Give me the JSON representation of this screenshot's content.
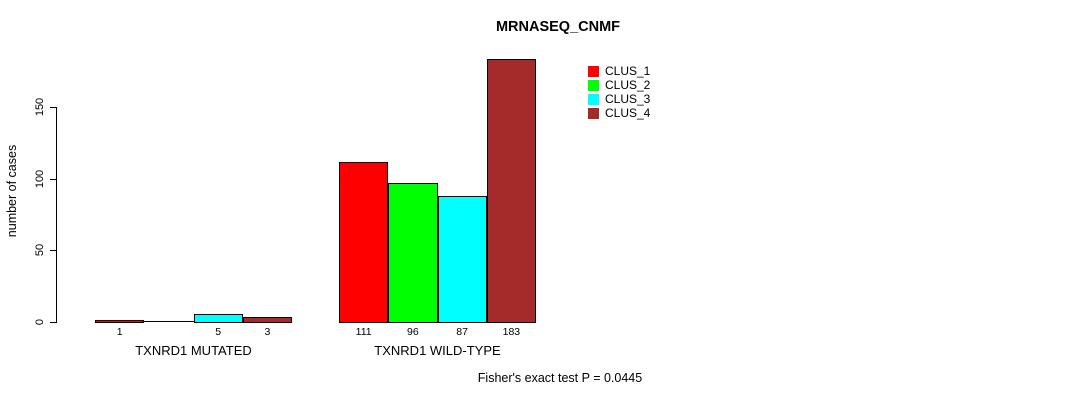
{
  "chart_data": {
    "type": "bar",
    "title": "MRNASEQ_CNMF",
    "ylabel": "number of cases",
    "xlabel": "",
    "categories": [
      "TXNRD1 MUTATED",
      "TXNRD1 WILD-TYPE"
    ],
    "series": [
      {
        "name": "CLUS_1",
        "color": "#FF0000",
        "values": [
          1,
          111
        ]
      },
      {
        "name": "CLUS_2",
        "color": "#00FF00",
        "values": [
          0,
          96
        ]
      },
      {
        "name": "CLUS_3",
        "color": "#00FFFF",
        "values": [
          5,
          87
        ]
      },
      {
        "name": "CLUS_4",
        "color": "#A52A2A",
        "values": [
          3,
          183
        ]
      }
    ],
    "bar_value_labels": [
      [
        "1",
        "",
        "5",
        "3"
      ],
      [
        "111",
        "96",
        "87",
        "183"
      ]
    ],
    "yticks": [
      0,
      50,
      100,
      150
    ],
    "ylim": [
      0,
      185
    ],
    "grid": false,
    "legend": {
      "position": "topright",
      "entries": [
        "CLUS_1",
        "CLUS_2",
        "CLUS_3",
        "CLUS_4"
      ]
    },
    "annotation": "Fisher's exact test P = 0.0445",
    "axis_color": "#000000",
    "background_color": "#FFFFFF"
  }
}
